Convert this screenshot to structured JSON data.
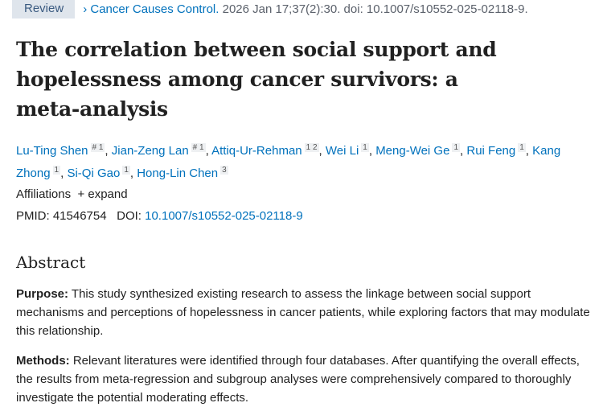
{
  "header": {
    "badge": "Review",
    "journal": "Cancer Causes Control.",
    "citation": "2026 Jan 17;37(2):30. doi: 10.1007/s10552-025-02118-9."
  },
  "title": "The correlation between social support and hopelessness among cancer survivors: a meta-analysis",
  "authors": [
    {
      "name": "Lu-Ting Shen",
      "sup": "# 1"
    },
    {
      "name": "Jian-Zeng Lan",
      "sup": "# 1"
    },
    {
      "name": "Attiq-Ur-Rehman",
      "sup": "1 2"
    },
    {
      "name": "Wei Li",
      "sup": "1"
    },
    {
      "name": "Meng-Wei Ge",
      "sup": "1"
    },
    {
      "name": "Rui Feng",
      "sup": "1"
    },
    {
      "name": "Kang Zhong",
      "sup": "1"
    },
    {
      "name": "Si-Qi Gao",
      "sup": "1"
    },
    {
      "name": "Hong-Lin Chen",
      "sup": "3"
    }
  ],
  "affiliations": {
    "label": "Affiliations",
    "expand": "expand"
  },
  "ids": {
    "pmid_label": "PMID:",
    "pmid": "41546754",
    "doi_label": "DOI:",
    "doi": "10.1007/s10552-025-02118-9"
  },
  "abstract": {
    "heading": "Abstract",
    "purpose_label": "Purpose:",
    "purpose": "This study synthesized existing research to assess the linkage between social support mechanisms and perceptions of hopelessness in cancer patients, while exploring factors that may modulate this relationship.",
    "methods_label": "Methods:",
    "methods": "Relevant literatures were identified through four databases. After quantifying the overall effects, the results from meta-regression and subgroup analyses were comprehensively compared to thoroughly investigate the potential moderating effects."
  }
}
